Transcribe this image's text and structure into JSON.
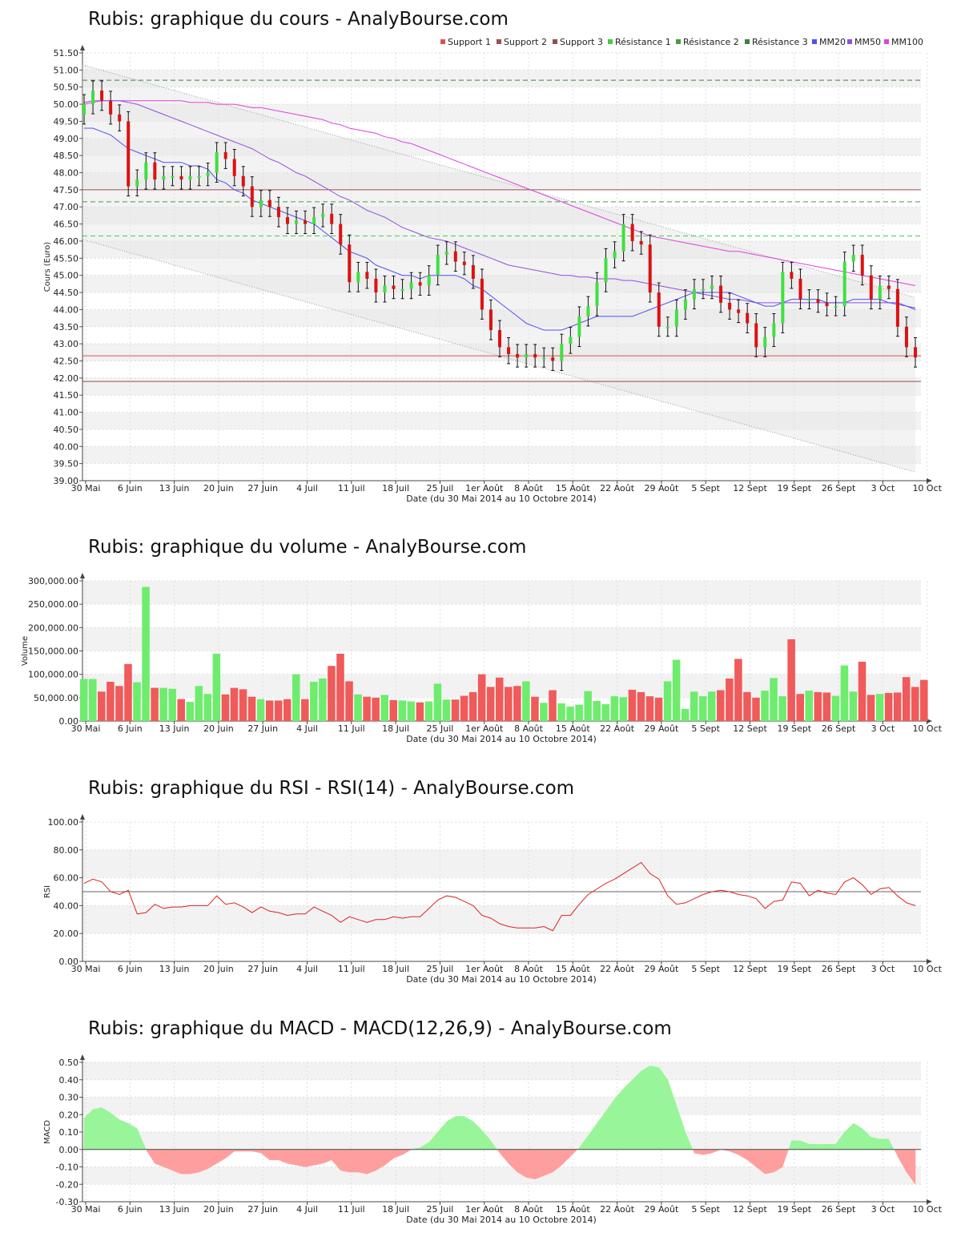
{
  "colors": {
    "up": "#40e040",
    "down": "#dd1111",
    "vol_up": "#6eec6e",
    "vol_down": "#f05a5a",
    "support1": "#e05050",
    "support2": "#a05050",
    "support3": "#905050",
    "res1": "#40d040",
    "res2": "#40a040",
    "res3": "#408040",
    "mm20": "#5050f0",
    "mm50": "#9050e0",
    "mm100": "#e040e0",
    "rsi": "#dd2222",
    "macd_pos": "#99f599",
    "macd_neg": "#ff9e9e"
  },
  "xaxis": {
    "tick_labels": [
      "30 Mai",
      "6 Juin",
      "13 Juin",
      "20 Juin",
      "27 Juin",
      "4 Juil",
      "11 Juil",
      "18 Juil",
      "25 Juil",
      "1er Août",
      "8 Août",
      "15 Août",
      "22 Août",
      "29 Août",
      "5 Sept",
      "12 Sept",
      "19 Sept",
      "26 Sept",
      "3 Oct",
      "10 Oct"
    ],
    "label": "Date (du 30 Mai 2014 au 10 Octobre 2014)"
  },
  "chart_data": [
    {
      "id": "price",
      "type": "candlestick",
      "title": "Rubis: graphique du cours - AnalyBourse.com",
      "ylabel": "Cours (Euro)",
      "ylim": [
        39,
        51.5
      ],
      "yticks": [
        "39.00",
        "39.50",
        "40.00",
        "40.50",
        "41.00",
        "41.50",
        "42.00",
        "42.50",
        "43.00",
        "43.50",
        "44.00",
        "44.50",
        "45.00",
        "45.50",
        "46.00",
        "46.50",
        "47.00",
        "47.50",
        "48.00",
        "48.50",
        "49.00",
        "49.50",
        "50.00",
        "50.50",
        "51.00",
        "51.50"
      ],
      "legend": [
        "Support 1",
        "Support 2",
        "Support 3",
        "Résistance 1",
        "Résistance 2",
        "Résistance 3",
        "MM20",
        "MM50",
        "MM100"
      ],
      "levels": {
        "support1": 42.65,
        "support2": 47.5,
        "support3": 41.9,
        "res1": 46.15,
        "res2": 47.15,
        "res3": 50.7
      },
      "trend_channel": {
        "upper": [
          51.15,
          44.35
        ],
        "lower": [
          46.05,
          39.25
        ]
      },
      "close": [
        50.0,
        50.4,
        50.1,
        49.7,
        49.5,
        47.6,
        47.8,
        48.3,
        47.8,
        47.9,
        47.9,
        47.8,
        47.9,
        47.9,
        48.0,
        48.6,
        48.4,
        47.9,
        47.6,
        47.0,
        47.2,
        47.0,
        46.7,
        46.5,
        46.6,
        46.5,
        46.7,
        46.8,
        46.5,
        45.9,
        44.8,
        45.1,
        44.9,
        44.5,
        44.7,
        44.6,
        44.6,
        44.8,
        44.7,
        45.0,
        45.6,
        45.7,
        45.4,
        45.3,
        44.9,
        44.0,
        43.4,
        42.9,
        42.7,
        42.6,
        42.7,
        42.6,
        42.6,
        42.5,
        43.0,
        43.2,
        43.8,
        44.1,
        44.8,
        45.5,
        45.7,
        46.5,
        46.0,
        45.9,
        44.5,
        43.5,
        43.5,
        44.0,
        44.3,
        44.6,
        44.6,
        44.7,
        44.2,
        44.0,
        43.9,
        43.6,
        42.9,
        43.2,
        43.6,
        45.1,
        44.9,
        44.3,
        44.3,
        44.2,
        44.1,
        44.1,
        45.4,
        45.6,
        45.0,
        44.3,
        44.7,
        44.6,
        43.5,
        42.9,
        42.6
      ],
      "ma20": [
        49.3,
        49.3,
        49.2,
        49.1,
        48.9,
        48.7,
        48.6,
        48.5,
        48.4,
        48.3,
        48.3,
        48.3,
        48.2,
        48.2,
        48.1,
        47.8,
        47.7,
        47.5,
        47.4,
        47.2,
        47.1,
        47.0,
        46.9,
        46.8,
        46.7,
        46.6,
        46.5,
        46.3,
        46.1,
        45.9,
        45.7,
        45.6,
        45.5,
        45.3,
        45.2,
        45.1,
        45.0,
        45.0,
        44.9,
        45.0,
        45.0,
        45.0,
        45.0,
        44.9,
        44.7,
        44.6,
        44.4,
        44.2,
        44.0,
        43.8,
        43.6,
        43.5,
        43.4,
        43.4,
        43.4,
        43.5,
        43.6,
        43.7,
        43.8,
        43.8,
        43.8,
        43.8,
        43.8,
        43.9,
        44.0,
        44.1,
        44.2,
        44.3,
        44.4,
        44.5,
        44.5,
        44.5,
        44.5,
        44.5,
        44.4,
        44.3,
        44.2,
        44.1,
        44.1,
        44.2,
        44.3,
        44.3,
        44.3,
        44.3,
        44.2,
        44.2,
        44.2,
        44.3,
        44.3,
        44.3,
        44.3,
        44.2,
        44.2,
        44.1,
        44.0
      ],
      "ma50": [
        50.05,
        50.1,
        50.1,
        50.1,
        50.1,
        50.05,
        50.0,
        49.9,
        49.8,
        49.7,
        49.6,
        49.5,
        49.4,
        49.3,
        49.2,
        49.1,
        49.0,
        48.9,
        48.8,
        48.7,
        48.55,
        48.4,
        48.3,
        48.15,
        48.0,
        47.9,
        47.75,
        47.6,
        47.45,
        47.3,
        47.2,
        47.05,
        46.9,
        46.8,
        46.7,
        46.55,
        46.4,
        46.3,
        46.2,
        46.1,
        46.05,
        46.0,
        45.9,
        45.8,
        45.7,
        45.6,
        45.5,
        45.4,
        45.3,
        45.25,
        45.2,
        45.15,
        45.1,
        45.05,
        45.0,
        45.0,
        44.95,
        44.95,
        44.9,
        44.9,
        44.9,
        44.85,
        44.85,
        44.8,
        44.75,
        44.7,
        44.65,
        44.6,
        44.55,
        44.5,
        44.45,
        44.4,
        44.35,
        44.3,
        44.3,
        44.25,
        44.2,
        44.2,
        44.2,
        44.2,
        44.2,
        44.2,
        44.2,
        44.2,
        44.2,
        44.2,
        44.2,
        44.2,
        44.2,
        44.2,
        44.2,
        44.2,
        44.15,
        44.1,
        44.05
      ],
      "ma100": [
        50.0,
        50.05,
        50.1,
        50.1,
        50.1,
        50.1,
        50.1,
        50.1,
        50.1,
        50.1,
        50.1,
        50.1,
        50.05,
        50.05,
        50.05,
        50.0,
        50.0,
        50.0,
        49.95,
        49.9,
        49.9,
        49.85,
        49.8,
        49.75,
        49.7,
        49.65,
        49.6,
        49.55,
        49.45,
        49.4,
        49.3,
        49.25,
        49.2,
        49.15,
        49.05,
        49.0,
        48.9,
        48.85,
        48.75,
        48.65,
        48.55,
        48.45,
        48.35,
        48.25,
        48.15,
        48.05,
        47.95,
        47.85,
        47.75,
        47.65,
        47.55,
        47.45,
        47.35,
        47.25,
        47.15,
        47.05,
        46.95,
        46.85,
        46.75,
        46.65,
        46.55,
        46.45,
        46.35,
        46.25,
        46.15,
        46.1,
        46.05,
        46.0,
        45.95,
        45.9,
        45.85,
        45.8,
        45.75,
        45.7,
        45.7,
        45.65,
        45.6,
        45.55,
        45.5,
        45.45,
        45.4,
        45.35,
        45.3,
        45.25,
        45.2,
        45.15,
        45.1,
        45.05,
        45.0,
        44.95,
        44.9,
        44.85,
        44.8,
        44.75,
        44.7
      ]
    },
    {
      "id": "volume",
      "type": "bar",
      "title": "Rubis: graphique du volume - AnalyBourse.com",
      "ylabel": "Volume",
      "ylim": [
        0,
        300000
      ],
      "yticks": [
        "0.00",
        "50,000.00",
        "100,000.00",
        "150,000.00",
        "200,000.00",
        "250,000.00",
        "300,000.00"
      ],
      "values": [
        90000,
        90000,
        63000,
        84000,
        75000,
        122000,
        83000,
        287000,
        71000,
        71000,
        69000,
        47000,
        41000,
        75000,
        58000,
        144000,
        57000,
        71000,
        68000,
        52000,
        47000,
        44000,
        44000,
        47000,
        100000,
        47000,
        84000,
        91000,
        118000,
        144000,
        85000,
        57000,
        52000,
        50000,
        56000,
        45000,
        44000,
        42000,
        40000,
        42000,
        80000,
        46000,
        46000,
        54000,
        62000,
        100000,
        73000,
        93000,
        73000,
        75000,
        85000,
        52000,
        39000,
        66000,
        38000,
        31000,
        35000,
        64000,
        43000,
        36000,
        53000,
        51000,
        67000,
        62000,
        53000,
        50000,
        85000,
        131000,
        26000,
        63000,
        53000,
        63000,
        66000,
        91000,
        133000,
        62000,
        50000,
        65000,
        92000,
        53000,
        175000,
        58000,
        65000,
        62000,
        61000,
        54000,
        119000,
        63000,
        127000,
        56000,
        58000,
        60000,
        61000,
        94000,
        73000,
        88000
      ]
    },
    {
      "id": "rsi",
      "type": "line",
      "title": "Rubis: graphique du RSI - RSI(14) - AnalyBourse.com",
      "ylabel": "RSI",
      "ylim": [
        0,
        100
      ],
      "yticks": [
        "0.00",
        "20.00",
        "40.00",
        "60.00",
        "80.00",
        "100.00"
      ],
      "ref_line": 50,
      "values": [
        56,
        59,
        57,
        50,
        48,
        51,
        34,
        35,
        41,
        38,
        39,
        39,
        40,
        40,
        40,
        47,
        41,
        42,
        39,
        35,
        39,
        36,
        35,
        33,
        34,
        34,
        39,
        36,
        33,
        28,
        32,
        30,
        28,
        30,
        30,
        32,
        31,
        32,
        32,
        38,
        44,
        47,
        46,
        43,
        40,
        33,
        31,
        27,
        25,
        24,
        24,
        24,
        25,
        22,
        33,
        33,
        41,
        48,
        52,
        56,
        59,
        63,
        67,
        71,
        63,
        59,
        47,
        41,
        42,
        45,
        48,
        50,
        51,
        50,
        48,
        47,
        45,
        38,
        43,
        44,
        57,
        56,
        47,
        51,
        49,
        48,
        57,
        60,
        55,
        48,
        52,
        53,
        47,
        42,
        40
      ]
    },
    {
      "id": "macd",
      "type": "area",
      "title": "Rubis: graphique du MACD - MACD(12,26,9) - AnalyBourse.com",
      "ylabel": "MACD",
      "ylim": [
        -0.3,
        0.5
      ],
      "yticks": [
        "-0.30",
        "-0.20",
        "-0.10",
        "0.00",
        "0.10",
        "0.20",
        "0.30",
        "0.40",
        "0.50"
      ],
      "values": [
        0.18,
        0.23,
        0.24,
        0.21,
        0.17,
        0.15,
        0.12,
        0.0,
        -0.08,
        -0.1,
        -0.12,
        -0.14,
        -0.14,
        -0.13,
        -0.11,
        -0.08,
        -0.05,
        -0.01,
        -0.01,
        -0.01,
        -0.02,
        -0.06,
        -0.06,
        -0.08,
        -0.09,
        -0.1,
        -0.09,
        -0.08,
        -0.06,
        -0.12,
        -0.13,
        -0.13,
        -0.14,
        -0.12,
        -0.09,
        -0.05,
        -0.03,
        0.0,
        0.01,
        0.04,
        0.1,
        0.16,
        0.19,
        0.19,
        0.16,
        0.11,
        0.05,
        -0.02,
        -0.08,
        -0.13,
        -0.16,
        -0.17,
        -0.15,
        -0.13,
        -0.09,
        -0.04,
        0.01,
        0.08,
        0.15,
        0.22,
        0.29,
        0.35,
        0.4,
        0.45,
        0.48,
        0.47,
        0.4,
        0.25,
        0.1,
        -0.02,
        -0.03,
        -0.02,
        0.0,
        -0.01,
        -0.03,
        -0.06,
        -0.1,
        -0.14,
        -0.13,
        -0.1,
        0.05,
        0.05,
        0.03,
        0.03,
        0.03,
        0.03,
        0.1,
        0.15,
        0.12,
        0.07,
        0.06,
        0.06,
        -0.04,
        -0.13,
        -0.2
      ]
    }
  ]
}
